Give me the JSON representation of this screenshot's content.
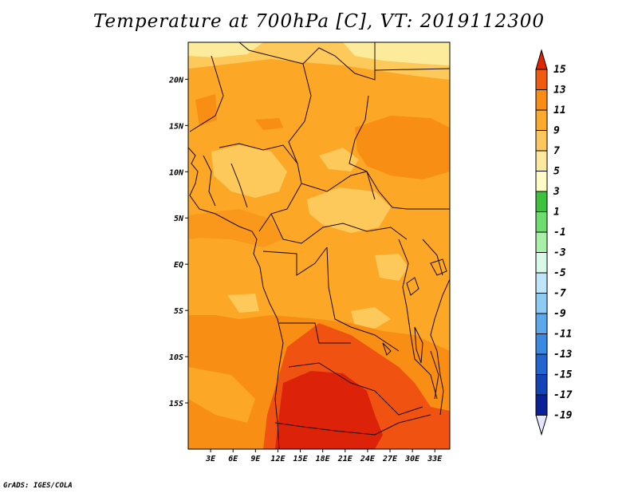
{
  "title": "Temperature at 700hPa [C], VT: 2019112300",
  "credit": "GrADS: IGES/COLA",
  "map": {
    "lon_range": [
      0,
      35
    ],
    "lat_range": [
      -20,
      24
    ],
    "lon_ticks": [
      "3E",
      "6E",
      "9E",
      "12E",
      "15E",
      "18E",
      "21E",
      "24E",
      "27E",
      "30E",
      "33E"
    ],
    "lat_ticks": [
      "20N",
      "15N",
      "10N",
      "5N",
      "EQ",
      "5S",
      "10S",
      "15S"
    ],
    "field_colors": {
      "t5": "#fdeb9c",
      "t7": "#fdc95a",
      "t9": "#fca726",
      "t11": "#f88e14",
      "t13": "#f05212",
      "t15": "#dc2208"
    }
  },
  "colorbar": {
    "labels": [
      "15",
      "13",
      "11",
      "9",
      "7",
      "5",
      "3",
      "1",
      "-1",
      "-3",
      "-5",
      "-7",
      "-9",
      "-11",
      "-13",
      "-15",
      "-17",
      "-19"
    ],
    "colors": [
      "#e32400",
      "#f15b0d",
      "#fa8c12",
      "#fcaa2c",
      "#fdc760",
      "#fde99e",
      "#fffbc7",
      "#3dc23d",
      "#6fdc6f",
      "#a8f0a8",
      "#d8f8e8",
      "#bfe5f8",
      "#8dcbf2",
      "#5ca8ec",
      "#3a8ae3",
      "#2264d0",
      "#1244b8",
      "#0a2098",
      "#0b0862",
      "#e5e5ff"
    ]
  }
}
